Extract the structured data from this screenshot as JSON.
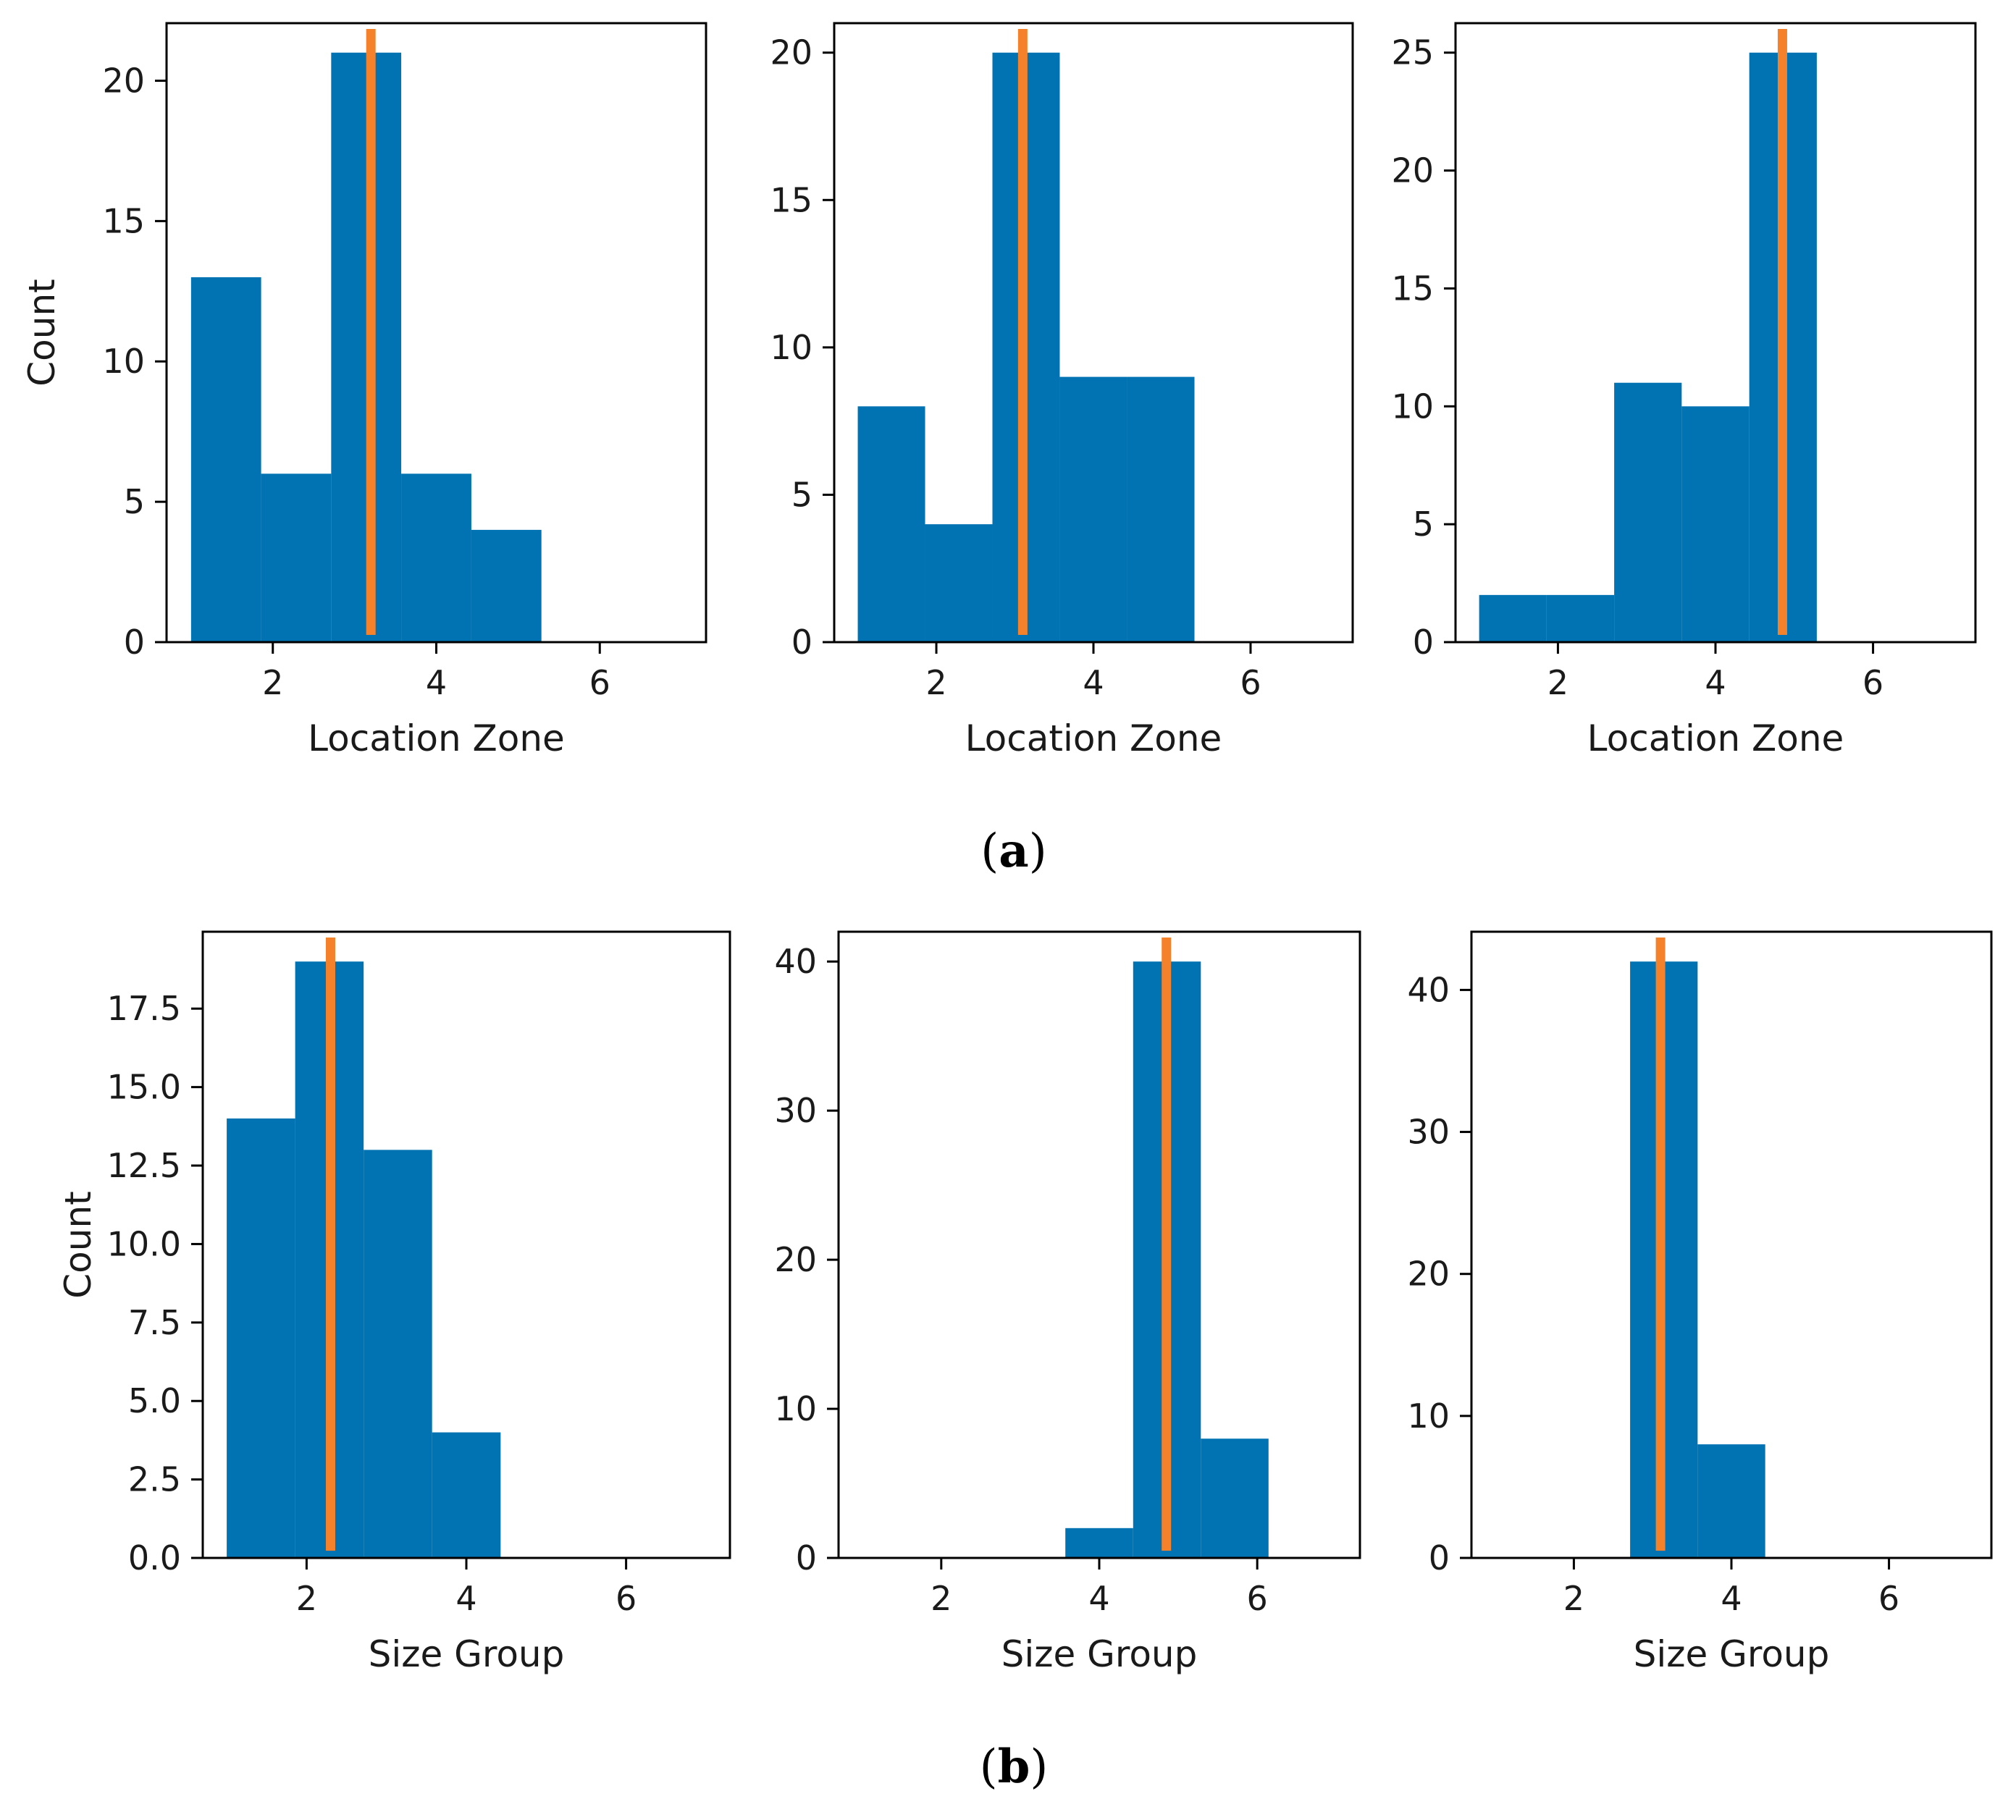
{
  "panels": [
    {
      "label_open": "(",
      "label_letter": "a",
      "label_close": ")"
    },
    {
      "label_open": "(",
      "label_letter": "b",
      "label_close": ")"
    }
  ],
  "colors": {
    "bar": "#0173b2",
    "mean_line": "#f5822b",
    "axis": "#000000"
  },
  "chart_data": [
    {
      "type": "bar",
      "panel": "a",
      "xlabel": "Location Zone",
      "ylabel": "Count",
      "xlim": [
        0.7,
        7.3
      ],
      "ylim": [
        0,
        22.05
      ],
      "xticks": [
        2,
        4,
        6
      ],
      "yticks": [
        0,
        5,
        10,
        15,
        20
      ],
      "bins": [
        [
          1.0,
          1.857,
          13
        ],
        [
          1.857,
          2.714,
          6
        ],
        [
          2.714,
          3.571,
          21
        ],
        [
          3.571,
          4.429,
          6
        ],
        [
          4.429,
          5.286,
          4
        ]
      ],
      "mean": 3.2
    },
    {
      "type": "bar",
      "panel": "a",
      "xlabel": "Location Zone",
      "ylabel": "",
      "xlim": [
        0.7,
        7.3
      ],
      "ylim": [
        0,
        21.0
      ],
      "xticks": [
        2,
        4,
        6
      ],
      "yticks": [
        0,
        5,
        10,
        15,
        20
      ],
      "bins": [
        [
          1.0,
          1.857,
          8
        ],
        [
          1.857,
          2.714,
          4
        ],
        [
          2.714,
          3.571,
          20
        ],
        [
          3.571,
          4.429,
          9
        ],
        [
          4.429,
          5.286,
          9
        ]
      ],
      "mean": 3.1
    },
    {
      "type": "bar",
      "panel": "a",
      "xlabel": "Location Zone",
      "ylabel": "",
      "xlim": [
        0.7,
        7.3
      ],
      "ylim": [
        0,
        26.25
      ],
      "xticks": [
        2,
        4,
        6
      ],
      "yticks": [
        0,
        5,
        10,
        15,
        20,
        25
      ],
      "bins": [
        [
          1.0,
          1.857,
          2
        ],
        [
          1.857,
          2.714,
          2
        ],
        [
          2.714,
          3.571,
          11
        ],
        [
          3.571,
          4.429,
          10
        ],
        [
          4.429,
          5.286,
          25
        ]
      ],
      "mean": 4.85
    },
    {
      "type": "bar",
      "panel": "b",
      "xlabel": "Size Group",
      "ylabel": "Count",
      "xlim": [
        0.7,
        7.3
      ],
      "ylim": [
        0,
        19.95
      ],
      "xticks": [
        2,
        4,
        6
      ],
      "yticks": [
        0.0,
        2.5,
        5.0,
        7.5,
        10.0,
        12.5,
        15.0,
        17.5
      ],
      "ytick_labels": [
        "0.0",
        "2.5",
        "5.0",
        "7.5",
        "10.0",
        "12.5",
        "15.0",
        "17.5"
      ],
      "bins": [
        [
          1.0,
          1.857,
          14
        ],
        [
          1.857,
          2.714,
          19
        ],
        [
          2.714,
          3.571,
          13
        ],
        [
          3.571,
          4.429,
          4
        ]
      ],
      "mean": 2.3
    },
    {
      "type": "bar",
      "panel": "b",
      "xlabel": "Size Group",
      "ylabel": "",
      "xlim": [
        0.7,
        7.3
      ],
      "ylim": [
        0,
        42.0
      ],
      "xticks": [
        2,
        4,
        6
      ],
      "yticks": [
        0,
        10,
        20,
        30,
        40
      ],
      "bins": [
        [
          3.571,
          4.429,
          2
        ],
        [
          4.429,
          5.286,
          40
        ],
        [
          5.286,
          6.143,
          8
        ]
      ],
      "mean": 4.85
    },
    {
      "type": "bar",
      "panel": "b",
      "xlabel": "Size Group",
      "ylabel": "",
      "xlim": [
        0.7,
        7.3
      ],
      "ylim": [
        0,
        44.1
      ],
      "xticks": [
        2,
        4,
        6
      ],
      "yticks": [
        0,
        10,
        20,
        30,
        40
      ],
      "bins": [
        [
          2.714,
          3.571,
          42
        ],
        [
          3.571,
          4.429,
          8
        ]
      ],
      "mean": 3.1
    }
  ]
}
